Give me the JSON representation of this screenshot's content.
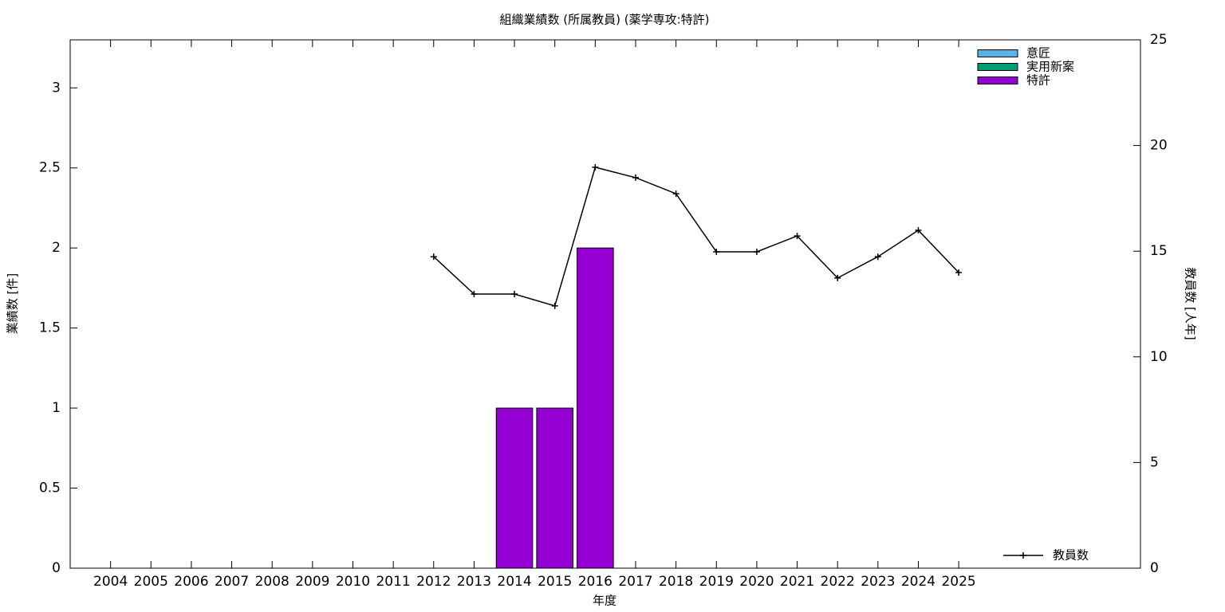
{
  "chart_data": {
    "type": "bar",
    "title": "組織業績数 (所属教員) (薬学専攻:特許)",
    "x_label": "年度",
    "y_label": "業績数 [件]",
    "y2_label": "教員数 [人年]",
    "categories": [
      "2004",
      "2005",
      "2006",
      "2007",
      "2008",
      "2009",
      "2010",
      "2011",
      "2012",
      "2013",
      "2014",
      "2015",
      "2016",
      "2017",
      "2018",
      "2019",
      "2020",
      "2021",
      "2022",
      "2023",
      "2024",
      "2025"
    ],
    "series": [
      {
        "name": "意匠",
        "type": "bar",
        "color": "#56b4e9",
        "values": [
          0,
          0,
          0,
          0,
          0,
          0,
          0,
          0,
          0,
          0,
          0,
          0,
          0,
          0,
          0,
          0,
          0,
          0,
          0,
          0,
          0,
          0
        ]
      },
      {
        "name": "実用新案",
        "type": "bar",
        "color": "#009e73",
        "values": [
          0,
          0,
          0,
          0,
          0,
          0,
          0,
          0,
          0,
          0,
          0,
          0,
          0,
          0,
          0,
          0,
          0,
          0,
          0,
          0,
          0,
          0
        ]
      },
      {
        "name": "特許",
        "type": "bar",
        "color": "#9400d3",
        "values": [
          0,
          0,
          0,
          0,
          0,
          0,
          0,
          0,
          0,
          0,
          1,
          1,
          2,
          0,
          0,
          0,
          0,
          0,
          0,
          0,
          0,
          0
        ]
      },
      {
        "name": "教員数",
        "type": "line",
        "axis": "y2",
        "color": "#000000",
        "values": [
          null,
          null,
          null,
          null,
          null,
          null,
          null,
          null,
          14.74,
          12.97,
          12.97,
          12.41,
          18.97,
          18.48,
          17.72,
          14.97,
          14.97,
          15.72,
          13.73,
          14.74,
          15.99,
          13.99
        ]
      }
    ],
    "ylim": [
      0,
      3.3
    ],
    "yticks": [
      0,
      0.5,
      1,
      1.5,
      2,
      2.5,
      3
    ],
    "y2lim": [
      0,
      25
    ],
    "y2ticks": [
      0,
      5,
      10,
      15,
      20,
      25
    ],
    "stacked": true,
    "grid": false
  }
}
